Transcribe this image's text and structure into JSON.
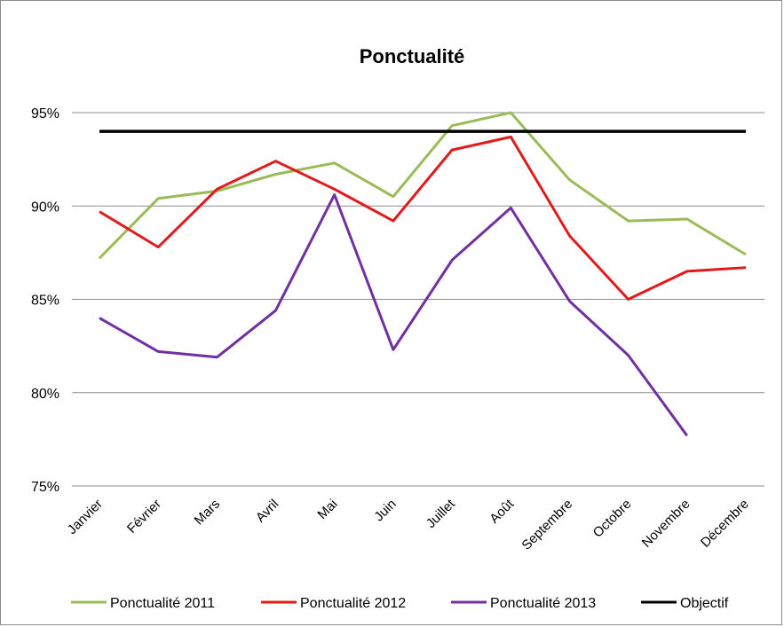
{
  "chart_data": {
    "type": "line",
    "title": "Ponctualité",
    "xlabel": "",
    "ylabel": "",
    "ylim": [
      75,
      95
    ],
    "y_ticks": [
      75,
      80,
      85,
      90,
      95
    ],
    "y_tick_labels": [
      "75%",
      "80%",
      "85%",
      "90%",
      "95%"
    ],
    "grid": true,
    "legend_position": "bottom",
    "categories": [
      "Janvier",
      "Février",
      "Mars",
      "Avril",
      "Mai",
      "Juin",
      "Juillet",
      "Août",
      "Septembre",
      "Octobre",
      "Novembre",
      "Décembre"
    ],
    "series": [
      {
        "name": "Ponctualité 2011",
        "color": "#9bbb59",
        "values": [
          87.2,
          90.4,
          90.8,
          91.7,
          92.3,
          90.5,
          94.3,
          95.0,
          91.4,
          89.2,
          89.3,
          87.4
        ]
      },
      {
        "name": "Ponctualité 2012",
        "color": "#e31a1c",
        "values": [
          89.7,
          87.8,
          90.9,
          92.4,
          90.9,
          89.2,
          93.0,
          93.7,
          88.4,
          85.0,
          86.5,
          86.7
        ]
      },
      {
        "name": "Ponctualité 2013",
        "color": "#7030a0",
        "values": [
          84.0,
          82.2,
          81.9,
          84.4,
          90.6,
          82.3,
          87.1,
          89.9,
          84.9,
          82.0,
          77.7,
          null
        ]
      },
      {
        "name": "Objectif",
        "color": "#000000",
        "values": [
          94,
          94,
          94,
          94,
          94,
          94,
          94,
          94,
          94,
          94,
          94,
          94
        ]
      }
    ]
  }
}
